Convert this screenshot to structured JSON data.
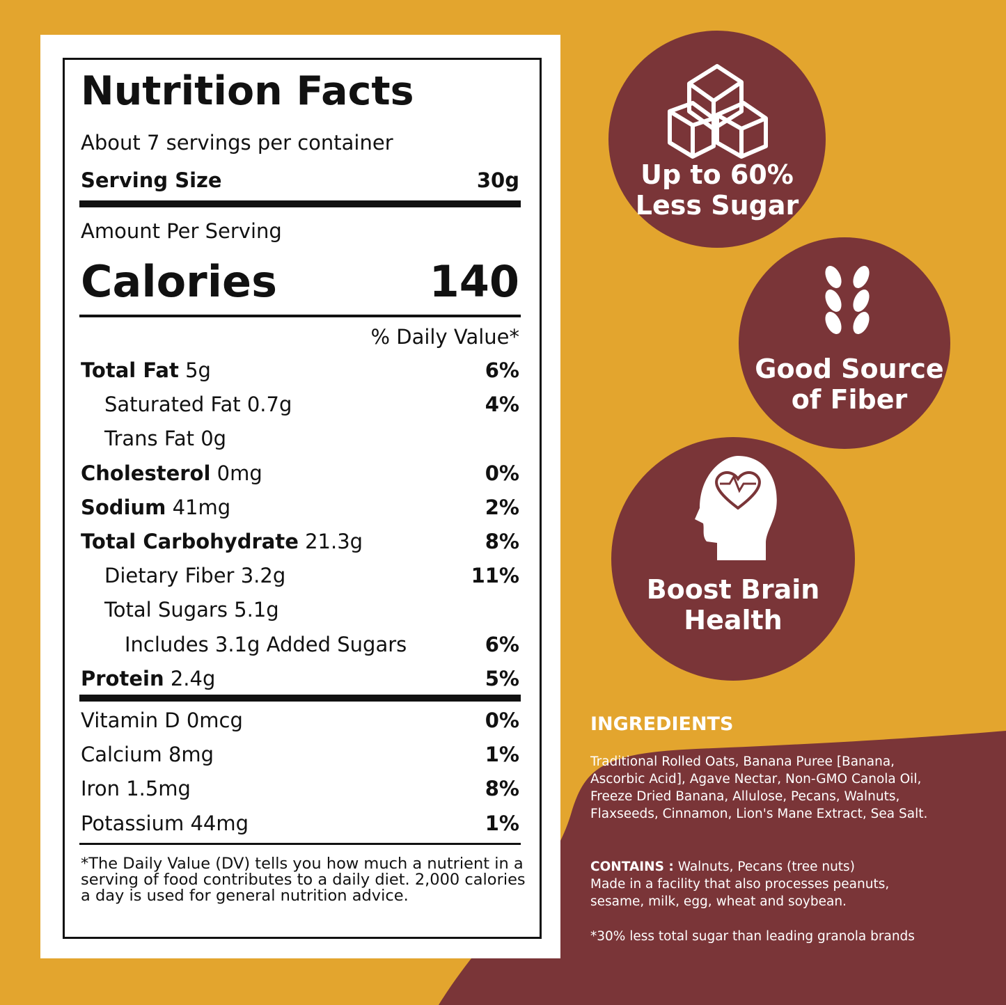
{
  "label": {
    "title": "Nutrition Facts",
    "servings": "About 7 servings per container",
    "serving_size_label": "Serving Size",
    "serving_size": "30g",
    "amount_per_serving": "Amount Per Serving",
    "calories_label": "Calories",
    "calories": "140",
    "dv_header": "% Daily Value*",
    "nutrients": [
      {
        "name": "Total Fat",
        "amount": "5g",
        "dv": "6%"
      },
      {
        "name": "Saturated Fat",
        "amount": "0.7g",
        "dv": "4%"
      },
      {
        "name": "Trans Fat",
        "amount": "0g"
      },
      {
        "name": "Cholesterol",
        "amount": "0mg",
        "dv": "0%"
      },
      {
        "name": "Sodium",
        "amount": "41mg",
        "dv": "2%"
      },
      {
        "name": "Total Carbohydrate",
        "amount": "21.3g",
        "dv": "8%"
      },
      {
        "name": "Dietary Fiber",
        "amount": "3.2g",
        "dv": "11%"
      },
      {
        "name": "Total Sugars",
        "amount": "5.1g"
      },
      {
        "name": "Includes 3.1g Added Sugars",
        "dv": "6%"
      },
      {
        "name": "Protein",
        "amount": "2.4g",
        "dv": "5%"
      }
    ],
    "vitamins": [
      {
        "name": "Vitamin D",
        "amount": "0mcg",
        "dv": "0%"
      },
      {
        "name": "Calcium",
        "amount": "8mg",
        "dv": "1%"
      },
      {
        "name": "Iron",
        "amount": "1.5mg",
        "dv": "8%"
      },
      {
        "name": "Potassium",
        "amount": "44mg",
        "dv": "1%"
      }
    ],
    "footnote": "*The Daily Value (DV) tells you how much a nutrient in a serving of food contributes to a daily diet. 2,000 calories a day is used for general nutrition advice."
  },
  "badges": [
    {
      "lines": [
        "Up to 60%",
        "Less Sugar"
      ]
    },
    {
      "lines": [
        "Good Source",
        "of Fiber"
      ]
    },
    {
      "lines": [
        "Boost Brain",
        "Health"
      ]
    }
  ],
  "ingredients": {
    "heading": "INGREDIENTS",
    "text": "Traditional Rolled Oats, Banana Puree [Banana, Ascorbic Acid], Agave Nectar, Non-GMO Canola Oil, Freeze Dried Banana, Allulose, Pecans, Walnuts, Flaxseeds, Cinnamon, Lion's Mane Extract, Sea Salt.",
    "contains_label": "CONTAINS :",
    "contains": "Walnuts, Pecans (tree nuts)",
    "facility": "Made in a facility that also processes peanuts, sesame, milk, egg, wheat and soybean.",
    "note": "*30% less total sugar than leading granola brands"
  }
}
